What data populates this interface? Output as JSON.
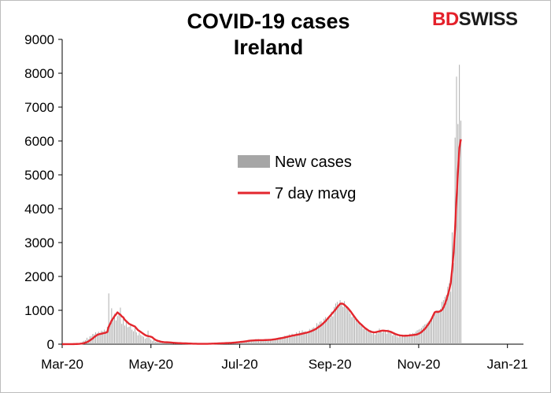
{
  "logo": {
    "part1": "BD",
    "part2": "SWISS"
  },
  "chart_data": {
    "type": "bar",
    "title": "COVID-19 cases\nIreland",
    "xlabel": "",
    "ylabel": "",
    "ylim": [
      0,
      9000
    ],
    "yticks": [
      0,
      1000,
      2000,
      3000,
      4000,
      5000,
      6000,
      7000,
      8000,
      9000
    ],
    "xlim": [
      "2020-03-01",
      "2021-01-12"
    ],
    "xticks": [
      {
        "date": "2020-03-01",
        "label": "Mar-20"
      },
      {
        "date": "2020-05-01",
        "label": "May-20"
      },
      {
        "date": "2020-07-01",
        "label": "Jul-20"
      },
      {
        "date": "2020-09-01",
        "label": "Sep-20"
      },
      {
        "date": "2020-11-01",
        "label": "Nov-20"
      },
      {
        "date": "2021-01-01",
        "label": "Jan-21"
      }
    ],
    "legend_position": "center",
    "series": [
      {
        "name": "New cases",
        "kind": "bar",
        "color": "#a6a6a6",
        "start_date": "2020-03-01",
        "values": [
          0,
          1,
          0,
          0,
          1,
          0,
          1,
          2,
          5,
          10,
          20,
          15,
          30,
          40,
          80,
          100,
          120,
          190,
          150,
          230,
          240,
          300,
          290,
          350,
          320,
          370,
          330,
          400,
          380,
          430,
          390,
          510,
          1500,
          610,
          1060,
          720,
          900,
          700,
          830,
          900,
          1080,
          600,
          760,
          550,
          650,
          500,
          520,
          600,
          430,
          380,
          470,
          350,
          260,
          330,
          270,
          240,
          220,
          160,
          190,
          400,
          180,
          130,
          90,
          120,
          70,
          80,
          60,
          70,
          40,
          65,
          55,
          60,
          50,
          40,
          45,
          35,
          30,
          35,
          28,
          25,
          25,
          25,
          26,
          15,
          20,
          20,
          18,
          15,
          12,
          10,
          15,
          12,
          10,
          14,
          10,
          8,
          10,
          12,
          10,
          10,
          12,
          15,
          15,
          20,
          18,
          20,
          22,
          25,
          20,
          25,
          30,
          25,
          35,
          30,
          35,
          30,
          40,
          45,
          50,
          55,
          60,
          50,
          70,
          80,
          85,
          90,
          80,
          95,
          110,
          100,
          130,
          120,
          90,
          150,
          110,
          150,
          90,
          120,
          110,
          100,
          140,
          100,
          130,
          120,
          150,
          140,
          160,
          180,
          170,
          200,
          210,
          190,
          220,
          250,
          240,
          250,
          290,
          230,
          310,
          290,
          280,
          350,
          320,
          390,
          340,
          410,
          370,
          380,
          360,
          350,
          450,
          430,
          480,
          500,
          470,
          620,
          580,
          660,
          680,
          600,
          750,
          800,
          780,
          820,
          770,
          960,
          820,
          1100,
          1200,
          1250,
          1100,
          1300,
          1200,
          1100,
          1270,
          1150,
          1050,
          1000,
          900,
          800,
          880,
          750,
          700,
          640,
          600,
          550,
          600,
          450,
          500,
          430,
          400,
          350,
          420,
          300,
          380,
          280,
          350,
          320,
          460,
          380,
          350,
          420,
          400,
          310,
          430,
          380,
          390,
          260,
          300,
          280,
          240,
          200,
          250,
          210,
          280,
          250,
          280,
          250,
          220,
          310,
          260,
          330,
          320,
          370,
          410,
          430,
          450,
          480,
          540,
          580,
          600,
          640,
          680,
          720,
          760,
          820,
          900,
          970,
          1000,
          970,
          1050,
          1250,
          1300,
          1400,
          1450,
          1700,
          1800,
          1550,
          3300,
          2400,
          6100,
          7900,
          6500,
          8250,
          6600
        ]
      },
      {
        "name": "7 day mavg",
        "kind": "line",
        "color": "#e3262d",
        "start_date": "2020-03-01",
        "values": [
          0,
          0,
          1,
          1,
          1,
          1,
          1,
          2,
          3,
          4,
          6,
          8,
          10,
          15,
          20,
          30,
          45,
          60,
          80,
          110,
          140,
          170,
          210,
          240,
          270,
          290,
          300,
          310,
          320,
          330,
          340,
          360,
          520,
          600,
          700,
          760,
          830,
          880,
          940,
          900,
          870,
          820,
          790,
          720,
          680,
          640,
          600,
          580,
          560,
          540,
          520,
          470,
          420,
          390,
          360,
          330,
          300,
          270,
          250,
          240,
          230,
          220,
          200,
          160,
          130,
          110,
          95,
          85,
          70,
          65,
          60,
          57,
          55,
          53,
          50,
          47,
          43,
          40,
          37,
          34,
          31,
          29,
          27,
          25,
          24,
          23,
          22,
          20,
          18,
          16,
          14,
          13,
          12,
          11,
          11,
          10,
          10,
          10,
          10,
          11,
          11,
          12,
          13,
          15,
          16,
          18,
          19,
          21,
          23,
          24,
          26,
          28,
          30,
          32,
          34,
          36,
          38,
          41,
          45,
          49,
          53,
          58,
          62,
          67,
          72,
          78,
          84,
          90,
          96,
          102,
          106,
          110,
          112,
          114,
          116,
          118,
          118,
          118,
          118,
          120,
          122,
          124,
          126,
          128,
          132,
          138,
          144,
          150,
          158,
          166,
          174,
          182,
          190,
          200,
          210,
          220,
          230,
          240,
          250,
          258,
          266,
          274,
          282,
          290,
          300,
          310,
          320,
          330,
          340,
          352,
          366,
          380,
          400,
          420,
          440,
          470,
          500,
          530,
          560,
          600,
          640,
          680,
          730,
          780,
          830,
          880,
          930,
          980,
          1030,
          1090,
          1140,
          1190,
          1200,
          1190,
          1160,
          1120,
          1080,
          1030,
          980,
          920,
          860,
          800,
          740,
          690,
          640,
          600,
          560,
          520,
          480,
          450,
          420,
          390,
          370,
          360,
          350,
          350,
          360,
          370,
          380,
          390,
          400,
          400,
          395,
          390,
          385,
          375,
          360,
          340,
          320,
          300,
          285,
          270,
          260,
          255,
          250,
          248,
          250,
          252,
          255,
          260,
          265,
          270,
          275,
          280,
          290,
          310,
          330,
          360,
          400,
          440,
          490,
          550,
          610,
          680,
          760,
          850,
          940,
          960,
          950,
          960,
          980,
          1010,
          1080,
          1180,
          1300,
          1450,
          1600,
          1800,
          2200,
          2700,
          3400,
          4300,
          5100,
          5800,
          6050
        ]
      }
    ]
  }
}
